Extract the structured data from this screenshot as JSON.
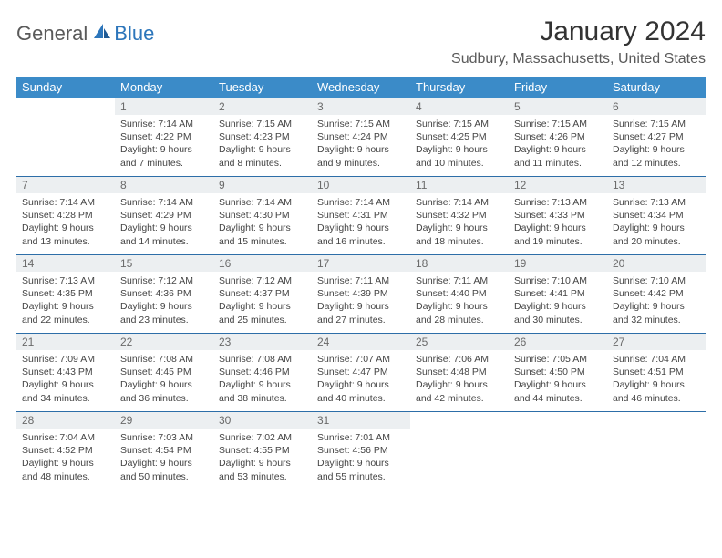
{
  "logo": {
    "general": "General",
    "blue": "Blue"
  },
  "title": "January 2024",
  "location": "Sudbury, Massachusetts, United States",
  "colors": {
    "header_bg": "#3b8bc8",
    "header_text": "#ffffff",
    "daynum_bg": "#eceff1",
    "daynum_text": "#6a6a6a",
    "cell_border": "#2d6ea8",
    "logo_blue": "#2d76bb",
    "logo_gray": "#5a5a5a",
    "body_text": "#444444"
  },
  "day_headers": [
    "Sunday",
    "Monday",
    "Tuesday",
    "Wednesday",
    "Thursday",
    "Friday",
    "Saturday"
  ],
  "weeks": [
    [
      null,
      {
        "n": "1",
        "sr": "7:14 AM",
        "ss": "4:22 PM",
        "dl": "9 hours and 7 minutes."
      },
      {
        "n": "2",
        "sr": "7:15 AM",
        "ss": "4:23 PM",
        "dl": "9 hours and 8 minutes."
      },
      {
        "n": "3",
        "sr": "7:15 AM",
        "ss": "4:24 PM",
        "dl": "9 hours and 9 minutes."
      },
      {
        "n": "4",
        "sr": "7:15 AM",
        "ss": "4:25 PM",
        "dl": "9 hours and 10 minutes."
      },
      {
        "n": "5",
        "sr": "7:15 AM",
        "ss": "4:26 PM",
        "dl": "9 hours and 11 minutes."
      },
      {
        "n": "6",
        "sr": "7:15 AM",
        "ss": "4:27 PM",
        "dl": "9 hours and 12 minutes."
      }
    ],
    [
      {
        "n": "7",
        "sr": "7:14 AM",
        "ss": "4:28 PM",
        "dl": "9 hours and 13 minutes."
      },
      {
        "n": "8",
        "sr": "7:14 AM",
        "ss": "4:29 PM",
        "dl": "9 hours and 14 minutes."
      },
      {
        "n": "9",
        "sr": "7:14 AM",
        "ss": "4:30 PM",
        "dl": "9 hours and 15 minutes."
      },
      {
        "n": "10",
        "sr": "7:14 AM",
        "ss": "4:31 PM",
        "dl": "9 hours and 16 minutes."
      },
      {
        "n": "11",
        "sr": "7:14 AM",
        "ss": "4:32 PM",
        "dl": "9 hours and 18 minutes."
      },
      {
        "n": "12",
        "sr": "7:13 AM",
        "ss": "4:33 PM",
        "dl": "9 hours and 19 minutes."
      },
      {
        "n": "13",
        "sr": "7:13 AM",
        "ss": "4:34 PM",
        "dl": "9 hours and 20 minutes."
      }
    ],
    [
      {
        "n": "14",
        "sr": "7:13 AM",
        "ss": "4:35 PM",
        "dl": "9 hours and 22 minutes."
      },
      {
        "n": "15",
        "sr": "7:12 AM",
        "ss": "4:36 PM",
        "dl": "9 hours and 23 minutes."
      },
      {
        "n": "16",
        "sr": "7:12 AM",
        "ss": "4:37 PM",
        "dl": "9 hours and 25 minutes."
      },
      {
        "n": "17",
        "sr": "7:11 AM",
        "ss": "4:39 PM",
        "dl": "9 hours and 27 minutes."
      },
      {
        "n": "18",
        "sr": "7:11 AM",
        "ss": "4:40 PM",
        "dl": "9 hours and 28 minutes."
      },
      {
        "n": "19",
        "sr": "7:10 AM",
        "ss": "4:41 PM",
        "dl": "9 hours and 30 minutes."
      },
      {
        "n": "20",
        "sr": "7:10 AM",
        "ss": "4:42 PM",
        "dl": "9 hours and 32 minutes."
      }
    ],
    [
      {
        "n": "21",
        "sr": "7:09 AM",
        "ss": "4:43 PM",
        "dl": "9 hours and 34 minutes."
      },
      {
        "n": "22",
        "sr": "7:08 AM",
        "ss": "4:45 PM",
        "dl": "9 hours and 36 minutes."
      },
      {
        "n": "23",
        "sr": "7:08 AM",
        "ss": "4:46 PM",
        "dl": "9 hours and 38 minutes."
      },
      {
        "n": "24",
        "sr": "7:07 AM",
        "ss": "4:47 PM",
        "dl": "9 hours and 40 minutes."
      },
      {
        "n": "25",
        "sr": "7:06 AM",
        "ss": "4:48 PM",
        "dl": "9 hours and 42 minutes."
      },
      {
        "n": "26",
        "sr": "7:05 AM",
        "ss": "4:50 PM",
        "dl": "9 hours and 44 minutes."
      },
      {
        "n": "27",
        "sr": "7:04 AM",
        "ss": "4:51 PM",
        "dl": "9 hours and 46 minutes."
      }
    ],
    [
      {
        "n": "28",
        "sr": "7:04 AM",
        "ss": "4:52 PM",
        "dl": "9 hours and 48 minutes."
      },
      {
        "n": "29",
        "sr": "7:03 AM",
        "ss": "4:54 PM",
        "dl": "9 hours and 50 minutes."
      },
      {
        "n": "30",
        "sr": "7:02 AM",
        "ss": "4:55 PM",
        "dl": "9 hours and 53 minutes."
      },
      {
        "n": "31",
        "sr": "7:01 AM",
        "ss": "4:56 PM",
        "dl": "9 hours and 55 minutes."
      },
      null,
      null,
      null
    ]
  ],
  "labels": {
    "sunrise": "Sunrise: ",
    "sunset": "Sunset: ",
    "daylight": "Daylight: "
  }
}
